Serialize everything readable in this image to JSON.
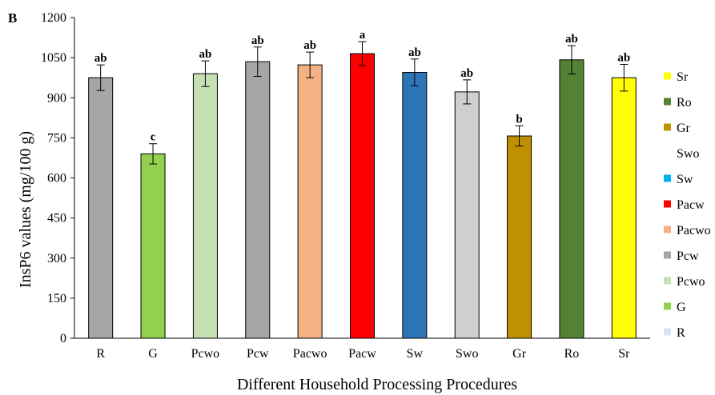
{
  "panel_label": "B",
  "chart_data": {
    "type": "bar",
    "title": "",
    "xlabel": "Different Household Processing Procedures",
    "ylabel": "InsP6 values (mg/100 g)",
    "ylim": [
      0,
      1200
    ],
    "yticks": [
      0,
      150,
      300,
      450,
      600,
      750,
      900,
      1050,
      1200
    ],
    "grid": false,
    "legend_position": "right",
    "categories": [
      "R",
      "G",
      "Pcwo",
      "Pcw",
      "Pacwo",
      "Pacw",
      "Sw",
      "Swo",
      "Gr",
      "Ro",
      "Sr"
    ],
    "values": [
      975,
      690,
      990,
      1035,
      1023,
      1065,
      995,
      922,
      757,
      1042,
      975
    ],
    "errors": [
      48,
      38,
      48,
      55,
      48,
      45,
      50,
      45,
      38,
      53,
      50
    ],
    "significance": [
      "ab",
      "c",
      "ab",
      "ab",
      "ab",
      "a",
      "ab",
      "ab",
      "b",
      "ab",
      "ab"
    ],
    "colors": [
      "#a6a6a6",
      "#92d050",
      "#c5e0b4",
      "#a6a6a6",
      "#f4b183",
      "#ff0000",
      "#2e75b6",
      "#d0cece",
      "#bf9000",
      "#548235",
      "#ffff00"
    ],
    "legend": [
      {
        "label": "Sr",
        "color": "#ffff00"
      },
      {
        "label": "Ro",
        "color": "#548235"
      },
      {
        "label": "Gr",
        "color": "#bf9000"
      },
      {
        "label": "Swo",
        "color": "#ffffff"
      },
      {
        "label": "Sw",
        "color": "#00b0f0"
      },
      {
        "label": "Pacw",
        "color": "#ff0000"
      },
      {
        "label": "Pacwo",
        "color": "#f4b183"
      },
      {
        "label": "Pcw",
        "color": "#a6a6a6"
      },
      {
        "label": "Pcwo",
        "color": "#c5e0b4"
      },
      {
        "label": "G",
        "color": "#92d050"
      },
      {
        "label": "R",
        "color": "#dae3f3"
      }
    ]
  }
}
